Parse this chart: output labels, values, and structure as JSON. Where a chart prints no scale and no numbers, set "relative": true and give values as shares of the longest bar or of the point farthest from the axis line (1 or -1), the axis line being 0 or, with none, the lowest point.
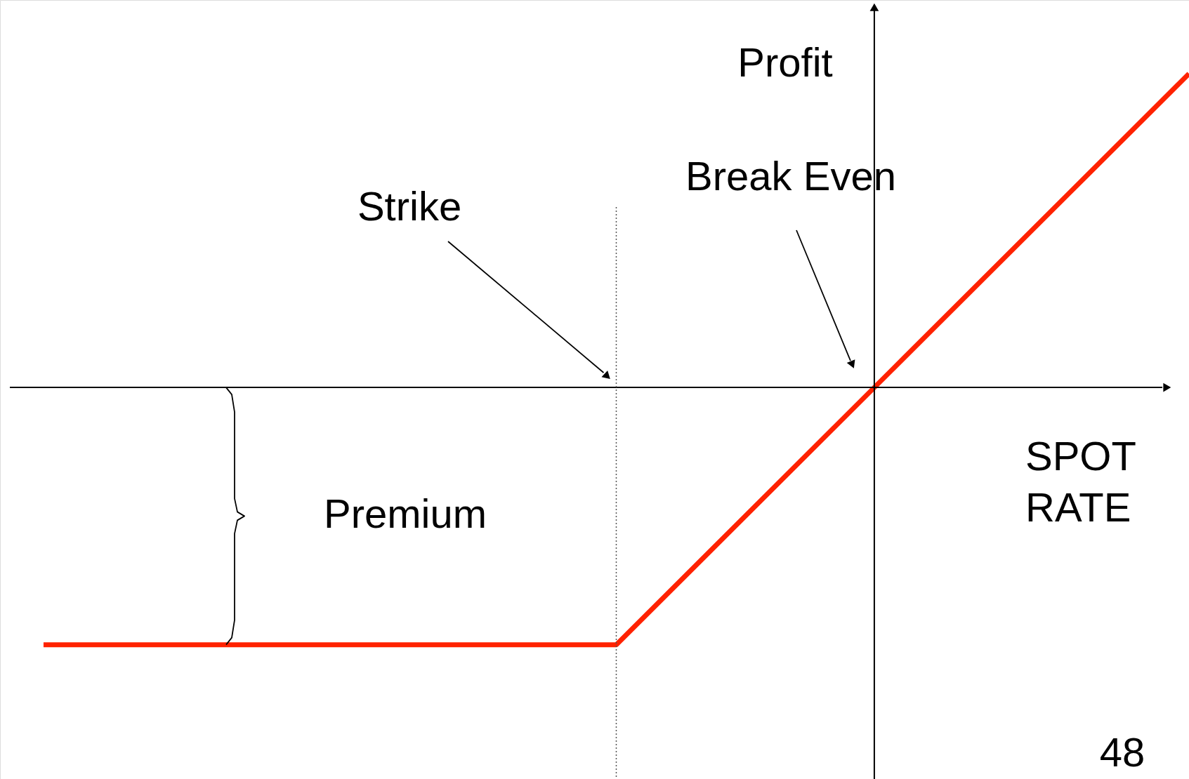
{
  "chart_data": {
    "type": "line",
    "relative": true,
    "ylabel": "Profit",
    "xlabel": "SPOT RATE",
    "categories": [
      null,
      null,
      null
    ],
    "series": [
      {
        "color": "#ff2200",
        "values": [
          -0.82,
          -0.82,
          1
        ]
      }
    ],
    "annotations": [
      "Break Even",
      "Strike",
      "48",
      "Premium"
    ],
    "marker": "none",
    "line_style": "solid",
    "grid": false
  }
}
